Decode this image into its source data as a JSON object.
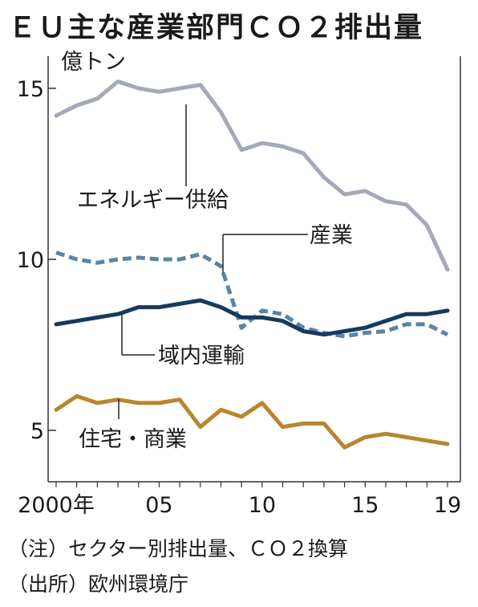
{
  "title": "ＥＵ主な産業部門ＣＯ２排出量",
  "chart_data": {
    "type": "line",
    "unit_label": "億トン",
    "x": [
      2000,
      2001,
      2002,
      2003,
      2004,
      2005,
      2006,
      2007,
      2008,
      2009,
      2010,
      2011,
      2012,
      2013,
      2014,
      2015,
      2016,
      2017,
      2018,
      2019
    ],
    "x_tick_values": [
      2000,
      2005,
      2010,
      2015,
      2019
    ],
    "x_tick_labels": [
      "2000年",
      "05",
      "10",
      "15",
      "19"
    ],
    "y_ticks": [
      5,
      10,
      15
    ],
    "ylim": [
      4,
      16
    ],
    "grid": false,
    "series": [
      {
        "name": "エネルギー供給",
        "color": "#a4a9b8",
        "dash": false,
        "values": [
          14.2,
          14.5,
          14.7,
          15.2,
          15.0,
          14.9,
          15.0,
          15.1,
          14.3,
          13.2,
          13.4,
          13.3,
          13.1,
          12.4,
          11.9,
          12.0,
          11.7,
          11.6,
          11.0,
          9.7
        ]
      },
      {
        "name": "産業",
        "color": "#5b84a6",
        "dash": true,
        "values": [
          10.2,
          10.0,
          9.9,
          10.0,
          10.05,
          10.0,
          10.0,
          10.15,
          9.8,
          8.0,
          8.5,
          8.4,
          8.0,
          7.85,
          7.75,
          7.85,
          7.9,
          8.1,
          8.1,
          7.8
        ]
      },
      {
        "name": "域内運輸",
        "color": "#153a60",
        "dash": false,
        "values": [
          8.1,
          8.2,
          8.3,
          8.4,
          8.6,
          8.6,
          8.7,
          8.8,
          8.6,
          8.3,
          8.3,
          8.2,
          7.9,
          7.8,
          7.9,
          8.0,
          8.2,
          8.4,
          8.4,
          8.5
        ]
      },
      {
        "name": "住宅・商業",
        "color": "#b8862f",
        "dash": false,
        "values": [
          5.6,
          6.0,
          5.8,
          5.9,
          5.8,
          5.8,
          5.9,
          5.1,
          5.6,
          5.4,
          5.8,
          5.1,
          5.2,
          5.2,
          4.5,
          4.8,
          4.9,
          4.8,
          4.7,
          4.6
        ]
      }
    ]
  },
  "notes": {
    "note1": "（注）セクター別排出量、ＣＯ２換算",
    "note2": "（出所）欧州環境庁"
  }
}
